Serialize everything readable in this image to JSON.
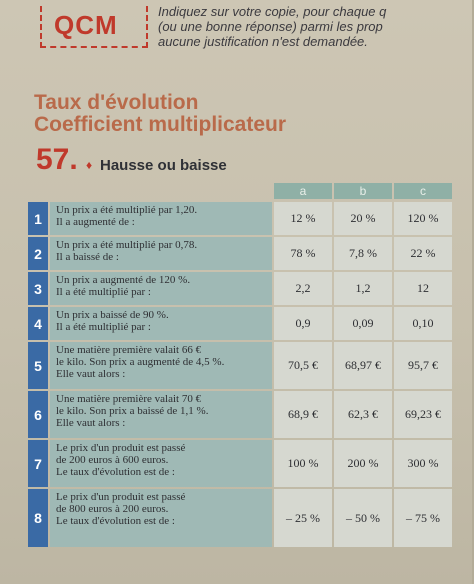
{
  "header": {
    "qcm_label": "QCM",
    "instructions": [
      "Indiquez sur votre copie, pour chaque q",
      "(ou une bonne réponse) parmi les prop",
      "aucune justification n'est demandée."
    ]
  },
  "section": {
    "title_line1": "Taux d'évolution",
    "title_line2": "Coefficient multiplicateur"
  },
  "exercise": {
    "number": "57.",
    "dot": "♦",
    "name": "Hausse ou baisse"
  },
  "table": {
    "headers": [
      "a",
      "b",
      "c"
    ],
    "rows": [
      {
        "num": "1",
        "question": [
          "Un prix a été multiplié par 1,20.",
          "Il a augmenté de :"
        ],
        "answers": [
          "12 %",
          "20 %",
          "120 %"
        ]
      },
      {
        "num": "2",
        "question": [
          "Un prix a été multiplié par 0,78.",
          "Il a baissé de :"
        ],
        "answers": [
          "78 %",
          "7,8 %",
          "22 %"
        ]
      },
      {
        "num": "3",
        "question": [
          "Un prix a augmenté de 120 %.",
          "Il a été multiplié par :"
        ],
        "answers": [
          "2,2",
          "1,2",
          "12"
        ]
      },
      {
        "num": "4",
        "question": [
          "Un prix a baissé de 90 %.",
          "Il a été multiplié par :"
        ],
        "answers": [
          "0,9",
          "0,09",
          "0,10"
        ]
      },
      {
        "num": "5",
        "question": [
          "Une matière première valait 66 €",
          "le kilo. Son prix a augmenté de 4,5 %.",
          "Elle vaut alors :"
        ],
        "answers": [
          "70,5 €",
          "68,97 €",
          "95,7 €"
        ]
      },
      {
        "num": "6",
        "question": [
          "Une matière première valait 70 €",
          "le kilo. Son prix a baissé de 1,1 %.",
          "Elle vaut alors :"
        ],
        "answers": [
          "68,9 €",
          "62,3 €",
          "69,23 €"
        ]
      },
      {
        "num": "7",
        "question": [
          "Le prix d'un produit est passé",
          "de 200 euros à 600 euros.",
          "Le taux d'évolution est de :"
        ],
        "answers": [
          "100 %",
          "200 %",
          "300 %"
        ]
      },
      {
        "num": "8",
        "question": [
          "Le prix d'un produit est passé",
          "de 800 euros à 200 euros.",
          "Le taux d'évolution est de :"
        ],
        "answers": [
          "– 25 %",
          "– 50 %",
          "– 75 %"
        ]
      }
    ]
  }
}
